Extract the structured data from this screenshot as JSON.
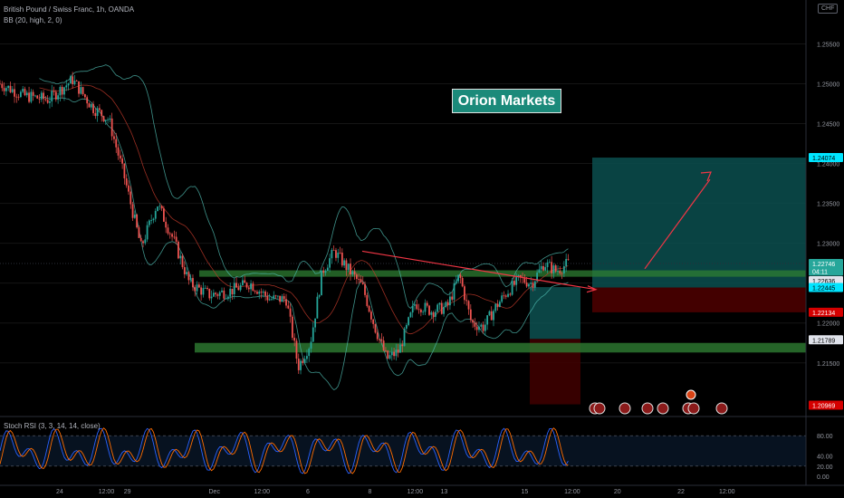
{
  "legend": {
    "symbol": "British Pound / Swiss Franc, 1h, OANDA",
    "indicator": "BB (20, high, 2, 0)",
    "oscillator": "Stoch RSI (3, 3, 14, 14, close)"
  },
  "brand": "Orion Markets",
  "currency": "CHF",
  "chart_data": {
    "type": "candlestick",
    "instrument": "GBP/CHF",
    "timeframe": "1h",
    "price_axis": {
      "range": [
        1.2085,
        1.2605
      ],
      "ticks": [
        "1.25500",
        "1.25000",
        "1.24500",
        "1.24000",
        "1.23500",
        "1.23000",
        "1.22500",
        "1.22000",
        "1.21500"
      ]
    },
    "time_axis": {
      "labels": [
        "24",
        "12:00",
        "29",
        "Dec",
        "12:00",
        "6",
        "8",
        "12:00",
        "13",
        "15",
        "12:00",
        "20",
        "22",
        "12:00"
      ],
      "positions": [
        0.074,
        0.132,
        0.158,
        0.266,
        0.325,
        0.382,
        0.459,
        0.515,
        0.551,
        0.651,
        0.71,
        0.766,
        0.845,
        0.902
      ]
    },
    "price_labels": [
      {
        "value": "1.24074",
        "price": 1.24074,
        "bg": "#00e5ff",
        "fg": "#000000"
      },
      {
        "value": "1.22746",
        "price": 1.22746,
        "bg": "#26a69a",
        "fg": "#ffffff"
      },
      {
        "value": "04:11",
        "price": 1.2265,
        "bg": "#26a69a",
        "fg": "#ffffff"
      },
      {
        "value": "1.22636",
        "price": 1.2253,
        "bg": "#e0e3eb",
        "fg": "#000000"
      },
      {
        "value": "1.22445",
        "price": 1.22445,
        "bg": "#00e5ff",
        "fg": "#000000"
      },
      {
        "value": "1.22134",
        "price": 1.22134,
        "bg": "#d50000",
        "fg": "#ffffff"
      },
      {
        "value": "1.21789",
        "price": 1.21789,
        "bg": "#e0e3eb",
        "fg": "#000000"
      },
      {
        "value": "1.20969",
        "price": 1.20969,
        "bg": "#d50000",
        "fg": "#ffffff"
      }
    ],
    "zones": {
      "resistance": [
        1.2258,
        1.2266
      ],
      "support": [
        1.2163,
        1.2175
      ],
      "long_position": {
        "entry": 1.22445,
        "target": 1.24074,
        "stop": 1.22134
      }
    },
    "price_path": [
      [
        0,
        1.25
      ],
      [
        0.03,
        1.2485
      ],
      [
        0.06,
        1.248
      ],
      [
        0.09,
        1.2505
      ],
      [
        0.115,
        1.247
      ],
      [
        0.135,
        1.2455
      ],
      [
        0.155,
        1.238
      ],
      [
        0.175,
        1.2295
      ],
      [
        0.195,
        1.235
      ],
      [
        0.215,
        1.2305
      ],
      [
        0.235,
        1.225
      ],
      [
        0.26,
        1.2235
      ],
      [
        0.285,
        1.224
      ],
      [
        0.31,
        1.225
      ],
      [
        0.335,
        1.223
      ],
      [
        0.355,
        1.223
      ],
      [
        0.37,
        1.2145
      ],
      [
        0.385,
        1.2175
      ],
      [
        0.4,
        1.2265
      ],
      [
        0.415,
        1.229
      ],
      [
        0.43,
        1.227
      ],
      [
        0.45,
        1.2245
      ],
      [
        0.465,
        1.2195
      ],
      [
        0.48,
        1.2155
      ],
      [
        0.495,
        1.2165
      ],
      [
        0.515,
        1.2225
      ],
      [
        0.535,
        1.2215
      ],
      [
        0.555,
        1.222
      ],
      [
        0.57,
        1.226
      ],
      [
        0.585,
        1.22
      ],
      [
        0.6,
        1.2195
      ],
      [
        0.615,
        1.222
      ],
      [
        0.63,
        1.224
      ],
      [
        0.645,
        1.2255
      ],
      [
        0.66,
        1.225
      ],
      [
        0.675,
        1.2275
      ],
      [
        0.69,
        1.2265
      ],
      [
        0.705,
        1.2275
      ]
    ],
    "stoch": {
      "range": [
        0,
        100
      ],
      "bands": [
        80,
        20
      ],
      "ticks": [
        "80.00",
        "40.00",
        "20.00",
        "0.00"
      ]
    }
  },
  "colors": {
    "up": "#26a69a",
    "down": "#ef5350",
    "zone": "#2e7d32",
    "bb": "#4db6ac",
    "arrow": "#f23645"
  }
}
